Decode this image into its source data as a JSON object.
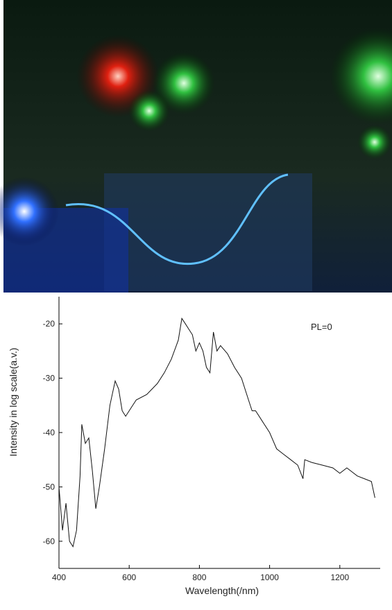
{
  "chart_data": {
    "type": "line",
    "annotation": "PL=0",
    "x_label": "Wavelength(/nm)",
    "y_label": "Intensity in log scale(a.v.)",
    "xlim": [
      400,
      1315
    ],
    "ylim": [
      -65,
      -15
    ],
    "xticks": [
      400,
      600,
      800,
      1000,
      1200
    ],
    "yticks": [
      -20,
      -30,
      -40,
      -50,
      -60
    ],
    "series": [
      {
        "color": "#111111",
        "x": [
          400,
          410,
          420,
          430,
          440,
          450,
          460,
          465,
          475,
          485,
          495,
          505,
          515,
          530,
          545,
          560,
          570,
          580,
          590,
          600,
          620,
          650,
          680,
          700,
          720,
          740,
          750,
          760,
          770,
          780,
          790,
          800,
          810,
          820,
          830,
          840,
          850,
          860,
          880,
          900,
          920,
          940,
          950,
          960,
          980,
          1000,
          1020,
          1040,
          1060,
          1080,
          1095,
          1100,
          1120,
          1150,
          1180,
          1200,
          1220,
          1250,
          1270,
          1290,
          1300
        ],
        "values": [
          -50,
          -58,
          -53,
          -60,
          -61,
          -58,
          -48,
          -38.5,
          -42,
          -41,
          -47,
          -54,
          -50,
          -43,
          -35,
          -30.5,
          -32,
          -36,
          -37,
          -36,
          -34,
          -33,
          -31,
          -29,
          -26.5,
          -23,
          -19,
          -20,
          -21,
          -22,
          -25,
          -23.5,
          -25,
          -28,
          -29,
          -21.5,
          -25,
          -24,
          -25.5,
          -28,
          -30,
          -34,
          -36,
          -36,
          -38,
          -40,
          -43,
          -44,
          -45,
          -46,
          -48.5,
          -45,
          -45.5,
          -46,
          -46.5,
          -47.5,
          -46.5,
          -48,
          -48.5,
          -49,
          -52
        ]
      }
    ]
  }
}
